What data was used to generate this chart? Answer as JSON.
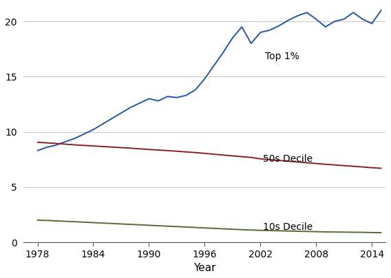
{
  "xlabel": "Year",
  "xlim": [
    1976.5,
    2015.5
  ],
  "ylim": [
    0,
    21.5
  ],
  "xticks": [
    1978,
    1984,
    1990,
    1996,
    2002,
    2008,
    2014
  ],
  "yticks": [
    0,
    5,
    10,
    15,
    20
  ],
  "background_color": "#ffffff",
  "grid_color": "#c8c8c8",
  "series": [
    {
      "label": "Top 1%",
      "color": "#2455a4",
      "annotation": "Top 1%",
      "ann_x": 2002.5,
      "ann_y": 16.8,
      "years": [
        1978,
        1979,
        1980,
        1981,
        1982,
        1983,
        1984,
        1985,
        1986,
        1987,
        1988,
        1989,
        1990,
        1991,
        1992,
        1993,
        1994,
        1995,
        1996,
        1997,
        1998,
        1999,
        2000,
        2001,
        2002,
        2003,
        2004,
        2005,
        2006,
        2007,
        2008,
        2009,
        2010,
        2011,
        2012,
        2013,
        2014,
        2015
      ],
      "values": [
        8.3,
        8.6,
        8.8,
        9.1,
        9.4,
        9.8,
        10.2,
        10.7,
        11.2,
        11.7,
        12.2,
        12.6,
        13.0,
        12.8,
        13.2,
        13.1,
        13.3,
        13.8,
        14.8,
        16.0,
        17.2,
        18.5,
        19.5,
        18.0,
        19.0,
        19.2,
        19.6,
        20.1,
        20.5,
        20.8,
        20.2,
        19.5,
        20.0,
        20.2,
        20.8,
        20.2,
        19.8,
        21.0
      ]
    },
    {
      "label": "50s Decile",
      "color": "#8b2020",
      "annotation": "50s Decile",
      "ann_x": 2002.3,
      "ann_y": 7.55,
      "years": [
        1978,
        1979,
        1980,
        1981,
        1982,
        1983,
        1984,
        1985,
        1986,
        1987,
        1988,
        1989,
        1990,
        1991,
        1992,
        1993,
        1994,
        1995,
        1996,
        1997,
        1998,
        1999,
        2000,
        2001,
        2002,
        2003,
        2004,
        2005,
        2006,
        2007,
        2008,
        2009,
        2010,
        2011,
        2012,
        2013,
        2014,
        2015
      ],
      "values": [
        9.05,
        9.0,
        8.95,
        8.88,
        8.82,
        8.77,
        8.72,
        8.67,
        8.62,
        8.57,
        8.52,
        8.46,
        8.4,
        8.35,
        8.3,
        8.24,
        8.18,
        8.12,
        8.05,
        7.97,
        7.9,
        7.82,
        7.75,
        7.68,
        7.55,
        7.48,
        7.41,
        7.34,
        7.27,
        7.2,
        7.13,
        7.06,
        7.0,
        6.94,
        6.88,
        6.82,
        6.75,
        6.7
      ]
    },
    {
      "label": "10s Decile",
      "color": "#556b2f",
      "annotation": "10s Decile",
      "ann_x": 2002.3,
      "ann_y": 1.4,
      "years": [
        1978,
        1979,
        1980,
        1981,
        1982,
        1983,
        1984,
        1985,
        1986,
        1987,
        1988,
        1989,
        1990,
        1991,
        1992,
        1993,
        1994,
        1995,
        1996,
        1997,
        1998,
        1999,
        2000,
        2001,
        2002,
        2003,
        2004,
        2005,
        2006,
        2007,
        2008,
        2009,
        2010,
        2011,
        2012,
        2013,
        2014,
        2015
      ],
      "values": [
        2.0,
        1.98,
        1.94,
        1.9,
        1.86,
        1.82,
        1.78,
        1.74,
        1.7,
        1.66,
        1.62,
        1.58,
        1.54,
        1.5,
        1.46,
        1.42,
        1.38,
        1.34,
        1.3,
        1.26,
        1.22,
        1.18,
        1.14,
        1.11,
        1.08,
        1.06,
        1.04,
        1.02,
        1.0,
        0.98,
        0.96,
        0.94,
        0.93,
        0.92,
        0.91,
        0.9,
        0.88,
        0.87
      ]
    }
  ]
}
